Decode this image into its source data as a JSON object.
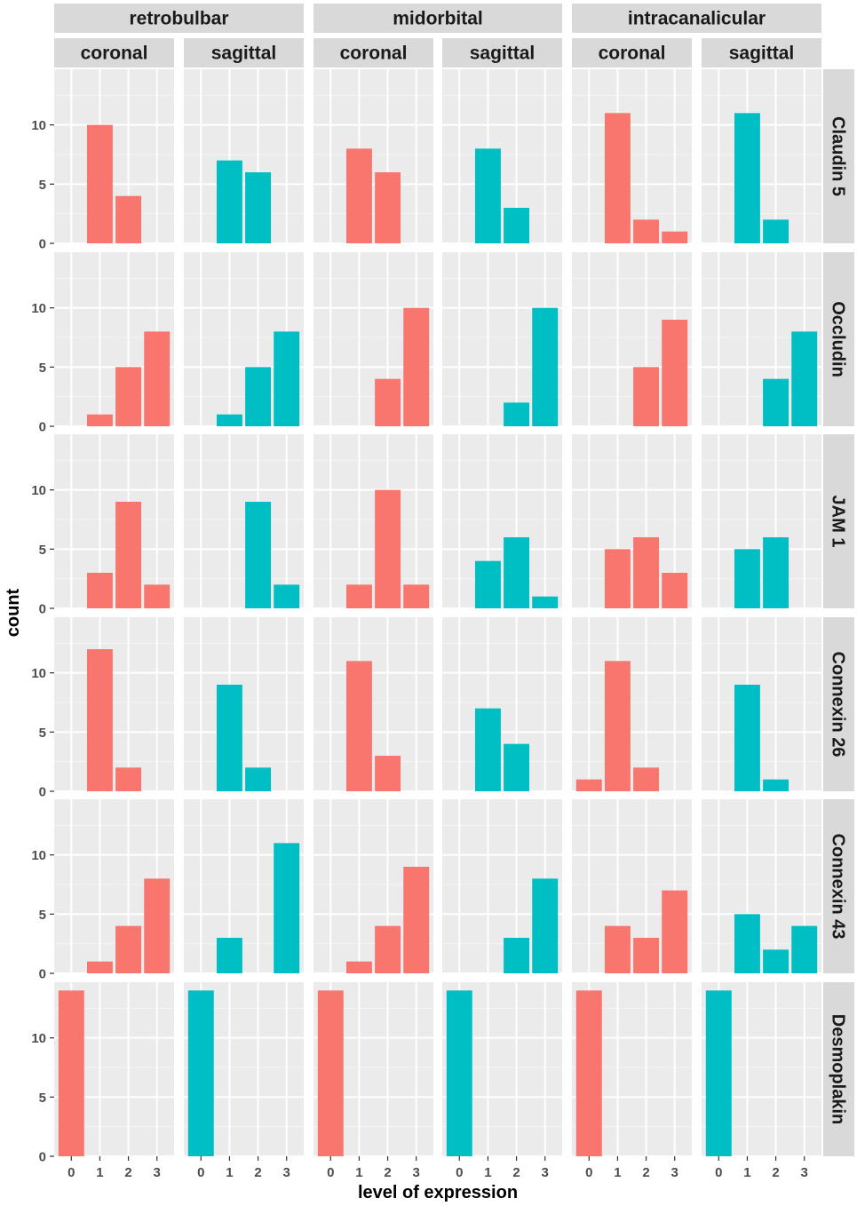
{
  "chart_data": {
    "type": "bar",
    "title": "",
    "xlabel": "level of expression",
    "ylabel": "count",
    "x_categories": [
      "0",
      "1",
      "2",
      "3"
    ],
    "y_ticks": [
      0,
      5,
      10
    ],
    "ylim": [
      0,
      14.7
    ],
    "legend": "none",
    "locations": [
      "retrobulbar",
      "midorbital",
      "intracanalicular"
    ],
    "orientations": [
      "coronal",
      "sagittal"
    ],
    "proteins": [
      "Claudin 5",
      "Occludin",
      "JAM 1",
      "Connexin 26",
      "Connexin 43",
      "Desmoplakin"
    ],
    "colors": {
      "coronal": "#F8766D",
      "sagittal": "#00BFC4"
    },
    "series": [
      {
        "protein": "Claudin 5",
        "panels": [
          [
            0,
            10,
            4,
            0
          ],
          [
            0,
            7,
            6,
            0
          ],
          [
            0,
            8,
            6,
            0
          ],
          [
            0,
            8,
            3,
            0
          ],
          [
            0,
            11,
            2,
            1
          ],
          [
            0,
            11,
            2,
            0
          ]
        ]
      },
      {
        "protein": "Occludin",
        "panels": [
          [
            0,
            1,
            5,
            8
          ],
          [
            0,
            1,
            5,
            8
          ],
          [
            0,
            0,
            4,
            10
          ],
          [
            0,
            0,
            2,
            10
          ],
          [
            0,
            0,
            5,
            9
          ],
          [
            0,
            0,
            4,
            8
          ]
        ]
      },
      {
        "protein": "JAM 1",
        "panels": [
          [
            0,
            3,
            9,
            2
          ],
          [
            0,
            0,
            9,
            2
          ],
          [
            0,
            2,
            10,
            2
          ],
          [
            0,
            4,
            6,
            1
          ],
          [
            0,
            5,
            6,
            3
          ],
          [
            0,
            5,
            6,
            0
          ]
        ]
      },
      {
        "protein": "Connexin 26",
        "panels": [
          [
            0,
            12,
            2,
            0
          ],
          [
            0,
            9,
            2,
            0
          ],
          [
            0,
            11,
            3,
            0
          ],
          [
            0,
            7,
            4,
            0
          ],
          [
            1,
            11,
            2,
            0
          ],
          [
            0,
            9,
            1,
            0
          ]
        ]
      },
      {
        "protein": "Connexin 43",
        "panels": [
          [
            0,
            1,
            4,
            8
          ],
          [
            0,
            3,
            0,
            11
          ],
          [
            0,
            1,
            4,
            9
          ],
          [
            0,
            0,
            3,
            8
          ],
          [
            0,
            4,
            3,
            7
          ],
          [
            0,
            5,
            2,
            4
          ]
        ]
      },
      {
        "protein": "Desmoplakin",
        "panels": [
          [
            14,
            0,
            0,
            0
          ],
          [
            14,
            0,
            0,
            0
          ],
          [
            14,
            0,
            0,
            0
          ],
          [
            14,
            0,
            0,
            0
          ],
          [
            14,
            0,
            0,
            0
          ],
          [
            14,
            0,
            0,
            0
          ]
        ]
      }
    ]
  }
}
